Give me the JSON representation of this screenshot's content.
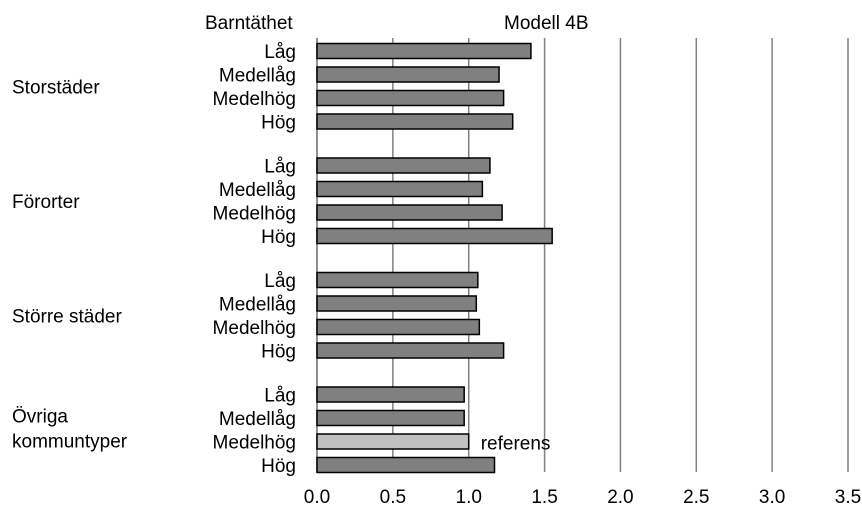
{
  "chart_data": {
    "type": "bar",
    "orientation": "horizontal",
    "title": "Modell 4B",
    "subcategory_header": "Barntäthet",
    "xlim": [
      0,
      3.5
    ],
    "x_ticks": [
      "0.0",
      "0.5",
      "1.0",
      "1.5",
      "2.0",
      "2.5",
      "3.0",
      "3.5"
    ],
    "grid": true,
    "colors": {
      "bar": "#808080",
      "reference_bar": "#c0c0c0",
      "grid": "#808080",
      "edge": "#000000"
    },
    "groups": [
      {
        "name": "Storstäder",
        "bars": [
          {
            "label": "Låg",
            "value": 1.41
          },
          {
            "label": "Medellåg",
            "value": 1.2
          },
          {
            "label": "Medelhög",
            "value": 1.23
          },
          {
            "label": "Hög",
            "value": 1.29
          }
        ]
      },
      {
        "name": "Förorter",
        "bars": [
          {
            "label": "Låg",
            "value": 1.14
          },
          {
            "label": "Medellåg",
            "value": 1.09
          },
          {
            "label": "Medelhög",
            "value": 1.22
          },
          {
            "label": "Hög",
            "value": 1.55
          }
        ]
      },
      {
        "name": "Större städer",
        "bars": [
          {
            "label": "Låg",
            "value": 1.06
          },
          {
            "label": "Medellåg",
            "value": 1.05
          },
          {
            "label": "Medelhög",
            "value": 1.07
          },
          {
            "label": "Hög",
            "value": 1.23
          }
        ]
      },
      {
        "name": "Övriga kommuntyper",
        "name_lines": [
          "Övriga",
          "kommuntyper"
        ],
        "bars": [
          {
            "label": "Låg",
            "value": 0.97
          },
          {
            "label": "Medellåg",
            "value": 0.97
          },
          {
            "label": "Medelhög",
            "value": 1.0,
            "reference": true,
            "annotation": "referens"
          },
          {
            "label": "Hög",
            "value": 1.17
          }
        ]
      }
    ]
  }
}
